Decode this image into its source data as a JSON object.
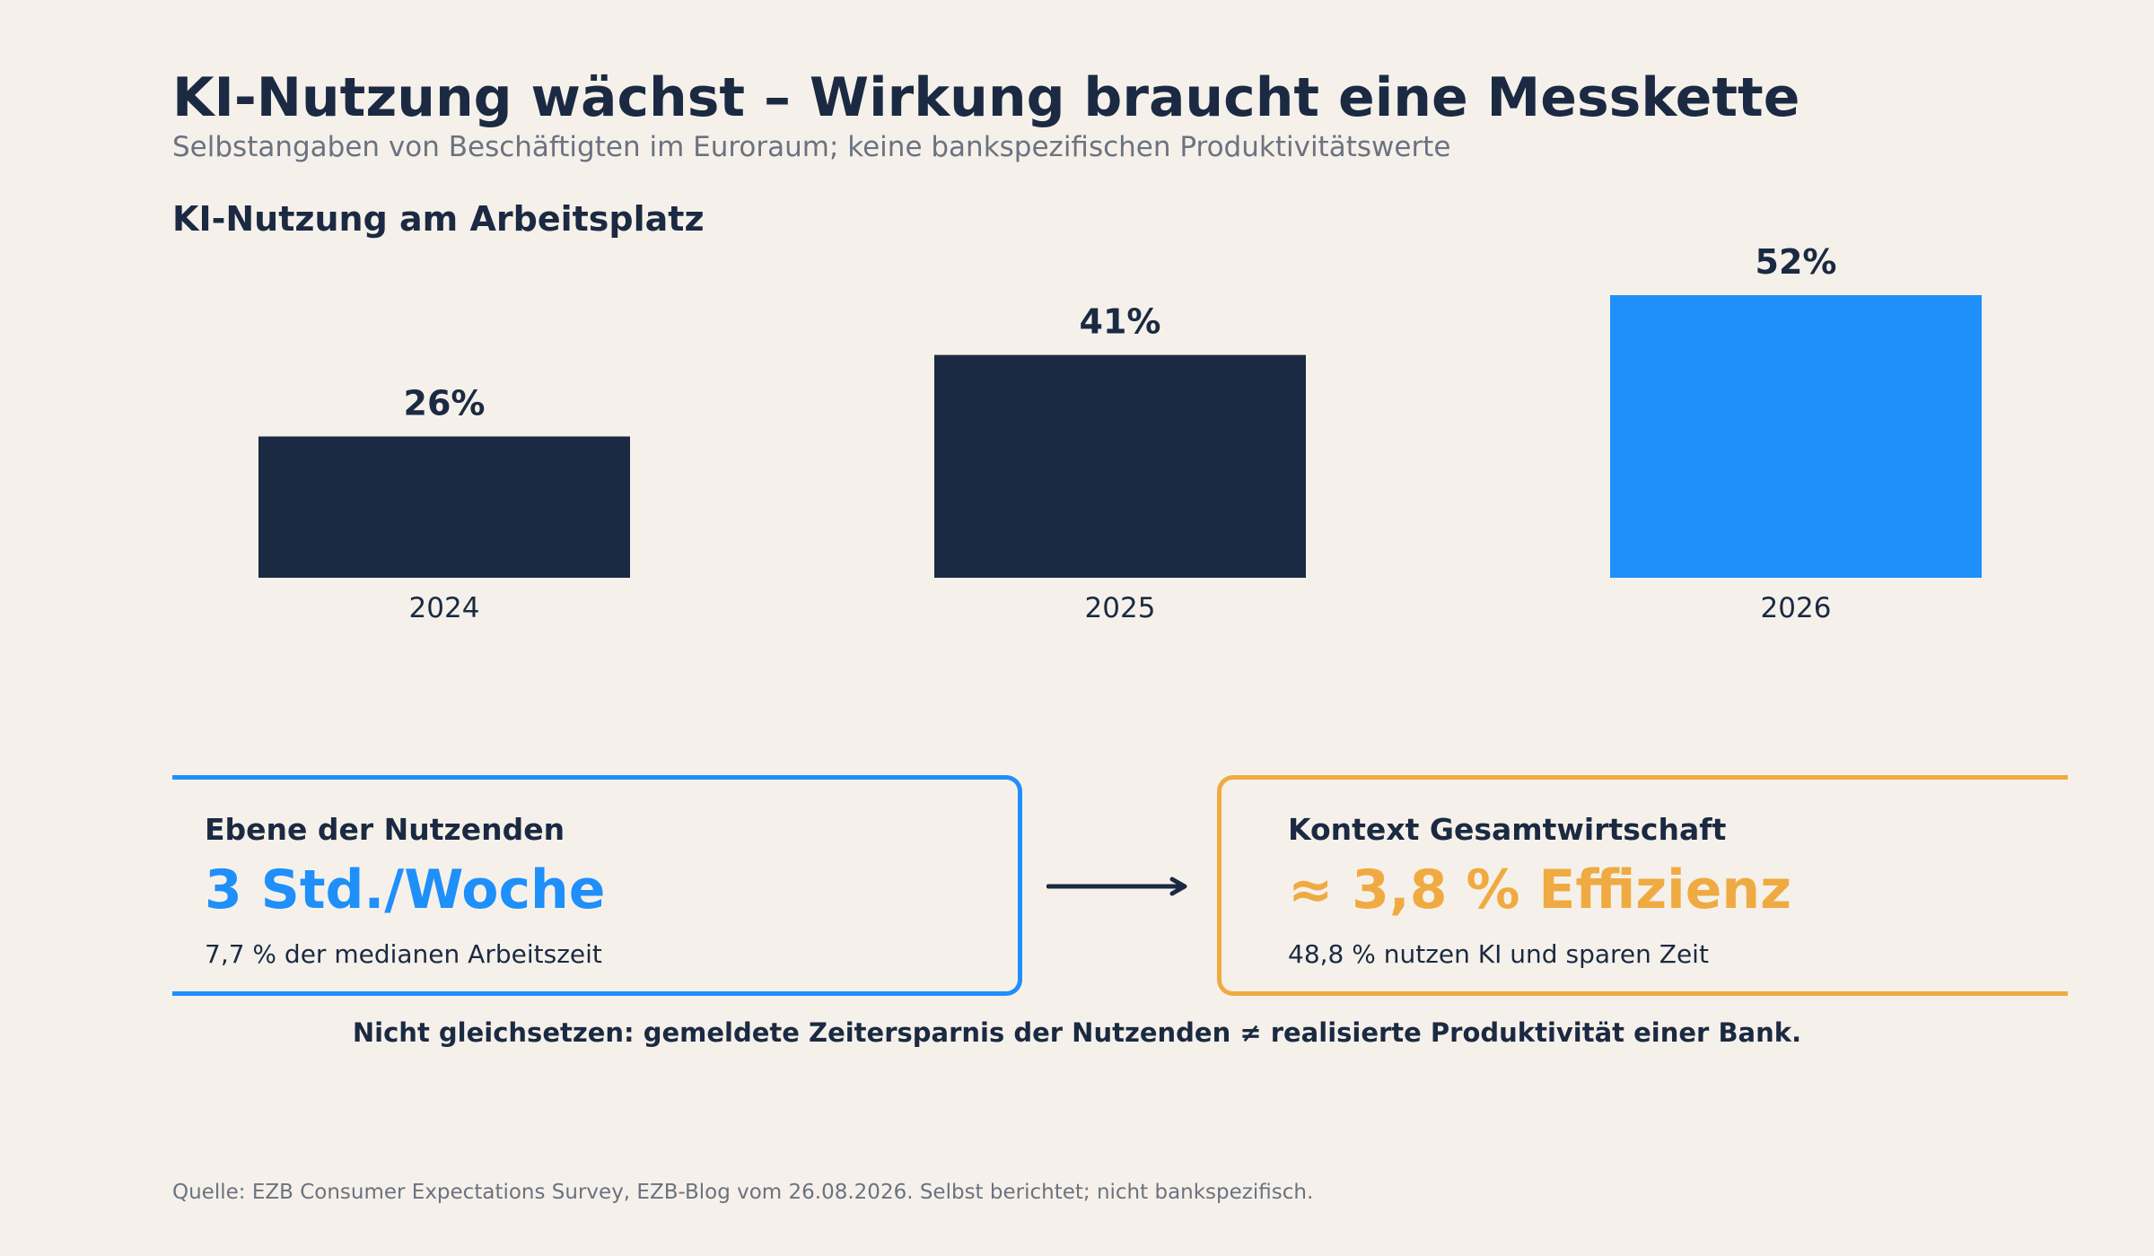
{
  "header": {
    "title": "KI-Nutzung wächst – Wirkung braucht eine Messkette",
    "subtitle": "Selbstangaben von Beschäftigten im Euroraum; keine bankspezifischen Produktivitätswerte"
  },
  "chart_data": {
    "type": "bar",
    "title": "KI-Nutzung am Arbeitsplatz",
    "categories": [
      "2024",
      "2025",
      "2026"
    ],
    "values": [
      26,
      41,
      52
    ],
    "value_labels": [
      "26%",
      "41%",
      "52%"
    ],
    "unit": "%",
    "ylim": [
      0,
      52
    ],
    "grid": false,
    "colors": [
      "#1b2a42",
      "#1b2a42",
      "#1f8ffa"
    ]
  },
  "cards": {
    "left": {
      "label": "Ebene der Nutzenden",
      "value": "3 Std./Woche",
      "note": "7,7 % der medianen Arbeitszeit",
      "color": "#1f8ffa"
    },
    "right": {
      "label": "Kontext Gesamtwirtschaft",
      "value": "≈ 3,8 % Effizienz",
      "note": "48,8 % nutzen KI und sparen Zeit",
      "color": "#f0aa42"
    },
    "arrow_icon": "arrow-right-icon"
  },
  "warning": "Nicht gleichsetzen: gemeldete Zeitersparnis der Nutzenden ≠ realisierte Produktivität einer Bank.",
  "footer": {
    "source": "Quelle: EZB Consumer Expectations Survey, EZB-Blog vom 26.08.2026. Selbst berichtet; nicht bankspezifisch."
  }
}
